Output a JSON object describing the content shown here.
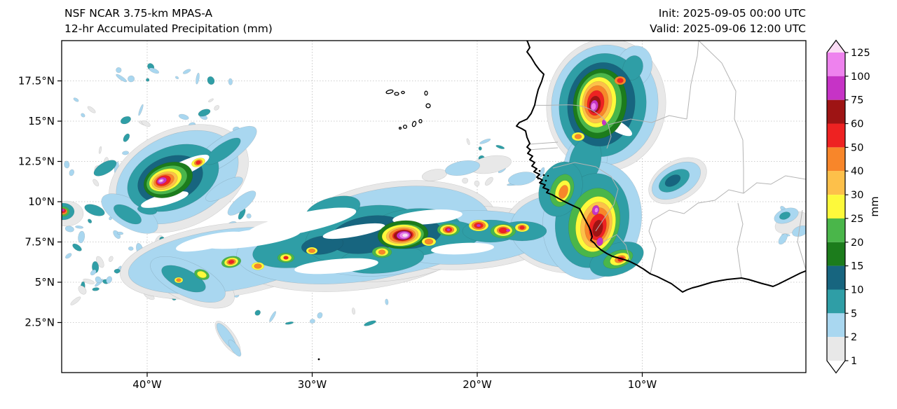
{
  "header": {
    "title_line1": "NSF NCAR 3.75-km MPAS-A",
    "title_line2": "12-hr Accumulated Precipitation (mm)",
    "init_label": "Init: 2025-09-05 00:00 UTC",
    "valid_label": "Valid: 2025-09-06 12:00 UTC"
  },
  "axes": {
    "lat_ticks": [
      "17.5°N",
      "15°N",
      "12.5°N",
      "10°N",
      "7.5°N",
      "5°N",
      "2.5°N"
    ],
    "lon_ticks": [
      "40°W",
      "30°W",
      "20°W",
      "10°W"
    ]
  },
  "colorbar": {
    "unit_label": "mm",
    "tick_labels": [
      "125",
      "100",
      "75",
      "60",
      "50",
      "40",
      "30",
      "25",
      "20",
      "15",
      "10",
      "5",
      "2",
      "1"
    ],
    "levels": [
      1,
      2,
      5,
      10,
      15,
      20,
      25,
      30,
      40,
      50,
      60,
      75,
      100,
      125
    ],
    "extend": "both",
    "colors": [
      "#ffffff",
      "#e8e8e8",
      "#a9d7f0",
      "#2f9ea6",
      "#17657f",
      "#1c7c1c",
      "#4ab64a",
      "#fdf93b",
      "#fdc04a",
      "#f8862a",
      "#ee2222",
      "#9e1414",
      "#c633c6",
      "#ee82ee",
      "#fbdcf5"
    ]
  }
}
